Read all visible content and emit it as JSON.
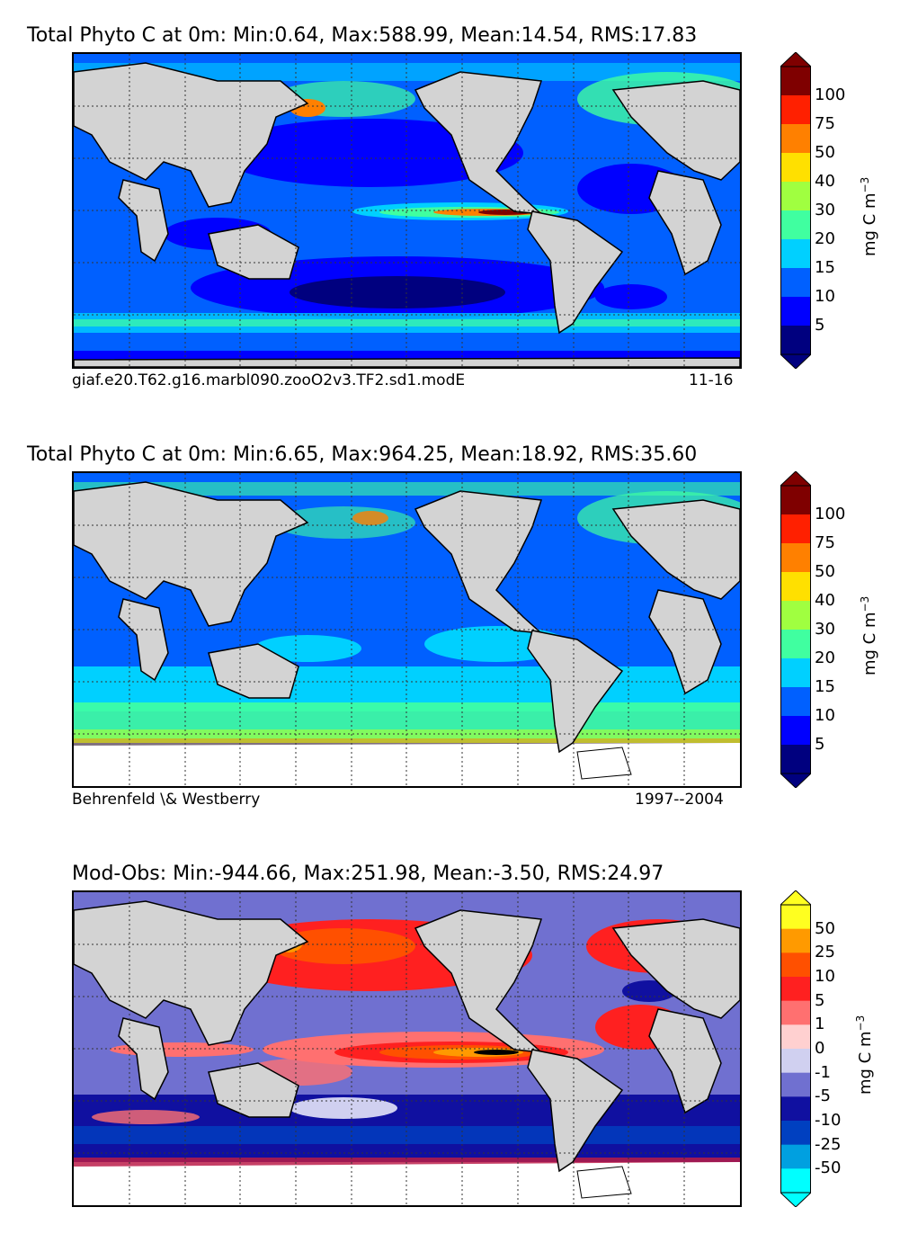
{
  "panels": [
    {
      "title": "Total Phyto C at 0m: Min:0.64, Max:588.99, Mean:14.54, RMS:17.83",
      "footer_left": "giaf.e20.T62.g16.marbl090.zooO2v3.TF2.sd1.modE",
      "footer_right": "11-16",
      "colorbar": {
        "unit": "mg C m",
        "unit_exp": "−3",
        "ticks": [
          "100",
          "75",
          "50",
          "40",
          "30",
          "20",
          "15",
          "10",
          "5"
        ],
        "colors": [
          "#7f0000",
          "#ff2000",
          "#ff8000",
          "#ffe000",
          "#a0ff40",
          "#40ffa0",
          "#00d0ff",
          "#0060ff",
          "#0000ff",
          "#00007f"
        ]
      }
    },
    {
      "title": "Total Phyto C at 0m: Min:6.65, Max:964.25, Mean:18.92, RMS:35.60",
      "footer_left": "Behrenfeld \\& Westberry",
      "footer_right": "1997--2004",
      "colorbar": {
        "unit": "mg C m",
        "unit_exp": "−3",
        "ticks": [
          "100",
          "75",
          "50",
          "40",
          "30",
          "20",
          "15",
          "10",
          "5"
        ],
        "colors": [
          "#7f0000",
          "#ff2000",
          "#ff8000",
          "#ffe000",
          "#a0ff40",
          "#40ffa0",
          "#00d0ff",
          "#0060ff",
          "#0000ff",
          "#00007f"
        ]
      }
    },
    {
      "title": "Mod-Obs: Min:-944.66, Max:251.98, Mean:-3.50, RMS:24.97",
      "footer_left": "",
      "footer_right": "",
      "colorbar": {
        "unit": "mg C m",
        "unit_exp": "−3",
        "ticks": [
          "50",
          "25",
          "10",
          "5",
          "1",
          "0",
          "-1",
          "-5",
          "-10",
          "-25",
          "-50"
        ],
        "colors": [
          "#ffff20",
          "#ff9a00",
          "#ff5000",
          "#ff2020",
          "#ff7070",
          "#ffd0d0",
          "#d0d0f0",
          "#7070d0",
          "#1010a0",
          "#0040c0",
          "#00a0e0",
          "#00ffff"
        ]
      }
    }
  ],
  "chart_data": [
    {
      "type": "heatmap",
      "title": "Total Phyto C at 0m: Min:0.64, Max:588.99, Mean:14.54, RMS:17.83",
      "stats": {
        "min": 0.64,
        "max": 588.99,
        "mean": 14.54,
        "rms": 17.83
      },
      "levels": [
        5,
        10,
        15,
        20,
        30,
        40,
        50,
        75,
        100
      ],
      "unit": "mg C m^-3",
      "source": "giaf.e20.T62.g16.marbl090.zooO2v3.TF2.sd1.modE",
      "period": "11-16"
    },
    {
      "type": "heatmap",
      "title": "Total Phyto C at 0m: Min:6.65, Max:964.25, Mean:18.92, RMS:35.60",
      "stats": {
        "min": 6.65,
        "max": 964.25,
        "mean": 18.92,
        "rms": 35.6
      },
      "levels": [
        5,
        10,
        15,
        20,
        30,
        40,
        50,
        75,
        100
      ],
      "unit": "mg C m^-3",
      "source": "Behrenfeld \\& Westberry",
      "period": "1997--2004"
    },
    {
      "type": "heatmap",
      "title": "Mod-Obs: Min:-944.66, Max:251.98, Mean:-3.50, RMS:24.97",
      "stats": {
        "min": -944.66,
        "max": 251.98,
        "mean": -3.5,
        "rms": 24.97
      },
      "levels": [
        -50,
        -25,
        -10,
        -5,
        -1,
        0,
        1,
        5,
        10,
        25,
        50
      ],
      "unit": "mg C m^-3"
    }
  ]
}
